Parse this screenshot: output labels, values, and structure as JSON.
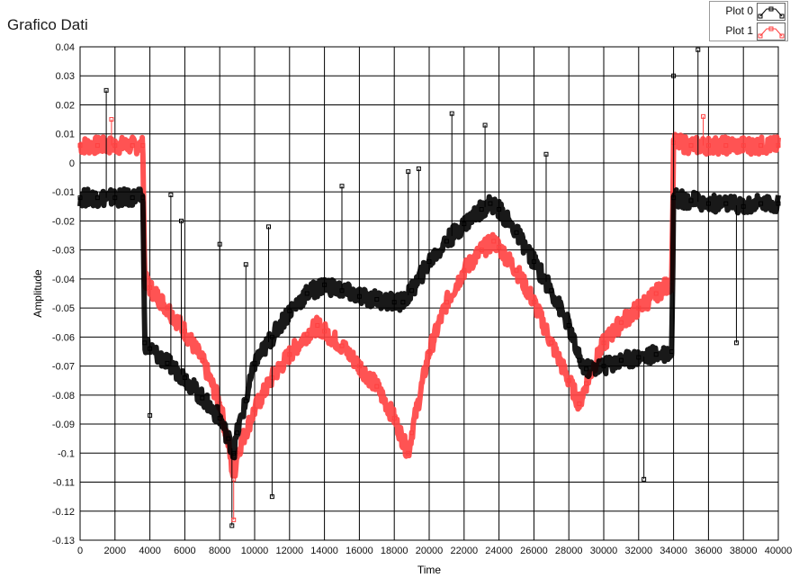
{
  "window": {
    "title": "Grafico Dati"
  },
  "legend": {
    "position": "top-right",
    "items": [
      {
        "label": "Plot 0",
        "color": "#000000"
      },
      {
        "label": "Plot 1",
        "color": "#ff4040"
      }
    ]
  },
  "chart_data": {
    "type": "line",
    "title": "Grafico Dati",
    "xlabel": "Time",
    "ylabel": "Amplitude",
    "xlim": [
      0,
      40000
    ],
    "ylim": [
      -0.13,
      0.04
    ],
    "x_ticks": [
      0,
      2000,
      4000,
      6000,
      8000,
      10000,
      12000,
      14000,
      16000,
      18000,
      20000,
      22000,
      24000,
      26000,
      28000,
      30000,
      32000,
      34000,
      36000,
      38000,
      40000
    ],
    "y_ticks": [
      0.04,
      0.03,
      0.02,
      0.01,
      0,
      -0.01,
      -0.02,
      -0.03,
      -0.04,
      -0.05,
      -0.06,
      -0.07,
      -0.08,
      -0.09,
      -0.1,
      -0.11,
      -0.12,
      -0.13
    ],
    "grid": true,
    "plot_background": "#ffffff",
    "grid_color": "#000000",
    "series": [
      {
        "name": "Plot 0",
        "color": "#000000",
        "marker": "square",
        "x": [
          0,
          1000,
          2000,
          3000,
          3600,
          3700,
          4000,
          5000,
          6000,
          7000,
          8000,
          8500,
          8800,
          9000,
          9500,
          10000,
          11000,
          12000,
          13000,
          14000,
          15000,
          16000,
          17000,
          18000,
          18500,
          19000,
          20000,
          21000,
          22000,
          23000,
          23500,
          24000,
          25000,
          26000,
          27000,
          28000,
          28600,
          29000,
          30000,
          31000,
          32000,
          33000,
          33900,
          34000,
          35000,
          36000,
          37000,
          38000,
          39000,
          40000
        ],
        "y": [
          -0.012,
          -0.012,
          -0.012,
          -0.012,
          -0.012,
          -0.062,
          -0.064,
          -0.069,
          -0.074,
          -0.081,
          -0.088,
          -0.095,
          -0.1,
          -0.093,
          -0.082,
          -0.069,
          -0.06,
          -0.051,
          -0.045,
          -0.042,
          -0.044,
          -0.046,
          -0.047,
          -0.048,
          -0.048,
          -0.044,
          -0.034,
          -0.027,
          -0.021,
          -0.016,
          -0.014,
          -0.016,
          -0.024,
          -0.034,
          -0.044,
          -0.056,
          -0.068,
          -0.071,
          -0.07,
          -0.068,
          -0.067,
          -0.066,
          -0.065,
          -0.012,
          -0.013,
          -0.014,
          -0.014,
          -0.015,
          -0.014,
          -0.014
        ]
      },
      {
        "name": "Plot 1",
        "color": "#ff4040",
        "marker": "square",
        "x": [
          0,
          1000,
          2000,
          3000,
          3600,
          3700,
          4000,
          5000,
          6000,
          7000,
          8000,
          8500,
          8800,
          9000,
          10000,
          11000,
          12000,
          13000,
          13600,
          14000,
          15000,
          16000,
          17000,
          18000,
          18800,
          19000,
          20000,
          21000,
          22000,
          23000,
          23700,
          24000,
          25000,
          26000,
          27000,
          28000,
          28600,
          29000,
          30000,
          31000,
          32000,
          33000,
          33900,
          34000,
          35000,
          36000,
          37000,
          38000,
          39000,
          40000
        ],
        "y": [
          0.006,
          0.006,
          0.006,
          0.006,
          0.006,
          -0.04,
          -0.043,
          -0.05,
          -0.058,
          -0.068,
          -0.083,
          -0.097,
          -0.109,
          -0.1,
          -0.085,
          -0.074,
          -0.066,
          -0.059,
          -0.056,
          -0.058,
          -0.063,
          -0.07,
          -0.077,
          -0.088,
          -0.1,
          -0.093,
          -0.065,
          -0.048,
          -0.037,
          -0.03,
          -0.027,
          -0.029,
          -0.037,
          -0.048,
          -0.062,
          -0.075,
          -0.083,
          -0.076,
          -0.062,
          -0.055,
          -0.05,
          -0.045,
          -0.041,
          0.007,
          0.006,
          0.006,
          0.006,
          0.006,
          0.006,
          0.006
        ]
      }
    ],
    "spikes": [
      {
        "series": "Plot 0",
        "x": 1500,
        "y": 0.025
      },
      {
        "series": "Plot 0",
        "x": 4000,
        "y": -0.087
      },
      {
        "series": "Plot 0",
        "x": 5200,
        "y": -0.011
      },
      {
        "series": "Plot 0",
        "x": 5800,
        "y": -0.02
      },
      {
        "series": "Plot 0",
        "x": 8000,
        "y": -0.028
      },
      {
        "series": "Plot 0",
        "x": 8700,
        "y": -0.125
      },
      {
        "series": "Plot 0",
        "x": 9500,
        "y": -0.035
      },
      {
        "series": "Plot 0",
        "x": 10800,
        "y": -0.022
      },
      {
        "series": "Plot 0",
        "x": 11000,
        "y": -0.115
      },
      {
        "series": "Plot 0",
        "x": 15000,
        "y": -0.008
      },
      {
        "series": "Plot 0",
        "x": 18800,
        "y": -0.003
      },
      {
        "series": "Plot 0",
        "x": 19400,
        "y": -0.002
      },
      {
        "series": "Plot 0",
        "x": 21300,
        "y": 0.017
      },
      {
        "series": "Plot 0",
        "x": 23200,
        "y": 0.013
      },
      {
        "series": "Plot 0",
        "x": 26700,
        "y": 0.003
      },
      {
        "series": "Plot 0",
        "x": 32300,
        "y": -0.109
      },
      {
        "series": "Plot 0",
        "x": 34000,
        "y": 0.03
      },
      {
        "series": "Plot 0",
        "x": 35400,
        "y": 0.039
      },
      {
        "series": "Plot 0",
        "x": 37600,
        "y": -0.062
      },
      {
        "series": "Plot 1",
        "x": 1800,
        "y": 0.015
      },
      {
        "series": "Plot 1",
        "x": 8800,
        "y": -0.123
      },
      {
        "series": "Plot 1",
        "x": 35700,
        "y": 0.016
      }
    ]
  }
}
